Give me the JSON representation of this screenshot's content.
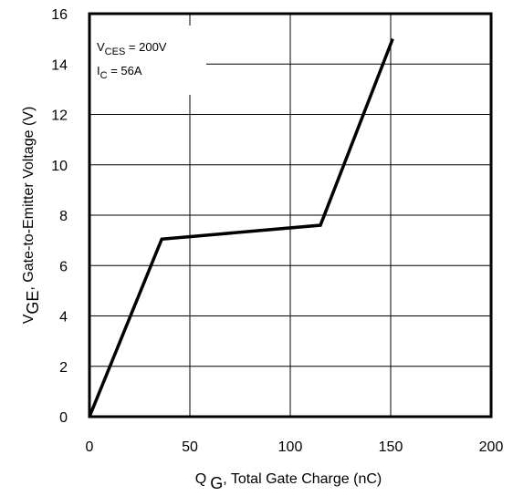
{
  "chart_data": {
    "type": "line",
    "x_axis": {
      "label_main": "Q",
      "label_sub": "G",
      "label_rest": ", Total Gate Charge (nC)",
      "xlim": [
        0,
        200
      ],
      "ticks": [
        0,
        50,
        100,
        150,
        200
      ],
      "tick_labels": [
        "0",
        "50",
        "100",
        "150",
        "200"
      ]
    },
    "y_axis": {
      "label_main": "V",
      "label_sub": "GE",
      "label_rest": ", Gate-to-Emitter Voltage (V)",
      "ylim": [
        0,
        16
      ],
      "ticks": [
        0,
        2,
        4,
        6,
        8,
        10,
        12,
        14,
        16
      ],
      "tick_labels": [
        "0",
        "2",
        "4",
        "6",
        "8",
        "10",
        "12",
        "14",
        "16"
      ]
    },
    "grid": true,
    "series": [
      {
        "x": [
          0,
          36,
          115,
          151
        ],
        "y": [
          0,
          7.05,
          7.6,
          15.0
        ]
      }
    ],
    "annotations": {
      "line1_main": "V",
      "line1_sub": "CES",
      "line1_rest": " = 200V",
      "line2_main": "I",
      "line2_sub": "C",
      "line2_rest": " = 56A"
    }
  }
}
